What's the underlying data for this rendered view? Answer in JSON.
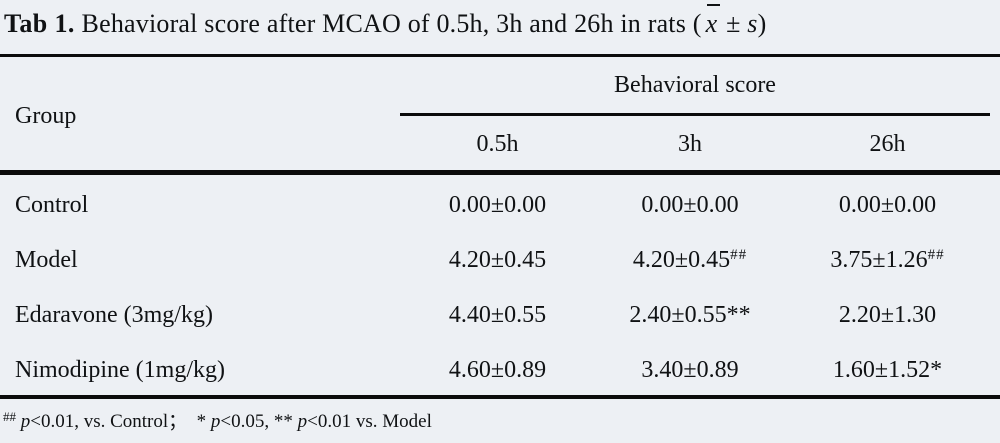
{
  "title": {
    "label": "Tab 1.",
    "rest": "Behavioral score after MCAO of 0.5h, 3h and 26h in rats (",
    "xbar": "x",
    "pm": "±",
    "s": "s",
    "close": ")"
  },
  "header": {
    "group": "Group",
    "spanner": "Behavioral score",
    "subheaders": [
      "0.5h",
      "3h",
      "26h"
    ]
  },
  "rows": [
    {
      "group": "Control",
      "c1": "0.00±0.00",
      "c1sup": "",
      "c2": "0.00±0.00",
      "c2sup": "",
      "c3": "0.00±0.00",
      "c3sup": ""
    },
    {
      "group": "Model",
      "c1": "4.20±0.45",
      "c1sup": "",
      "c2": "4.20±0.45",
      "c2sup": "##",
      "c3": "3.75±1.26",
      "c3sup": "##"
    },
    {
      "group": "Edaravone (3mg/kg)",
      "c1": "4.40±0.55",
      "c1sup": "",
      "c2": "2.40±0.55**",
      "c2sup": "",
      "c3": "2.20±1.30",
      "c3sup": ""
    },
    {
      "group": "Nimodipine (1mg/kg)",
      "c1": "4.60±0.89",
      "c1sup": "",
      "c2": "3.40±0.89",
      "c2sup": "",
      "c3": "1.60±1.52*",
      "c3sup": ""
    }
  ],
  "footnote": {
    "sup": "##",
    "p1": "p",
    "t1": "<0.01, vs. Control；  * ",
    "p2": "p",
    "t2": "<0.05, ** ",
    "p3": "p",
    "t3": "<0.01 vs. Model"
  },
  "colors": {
    "background": "#edf0f4",
    "text": "#101214",
    "rule": "#0b0b0b"
  }
}
